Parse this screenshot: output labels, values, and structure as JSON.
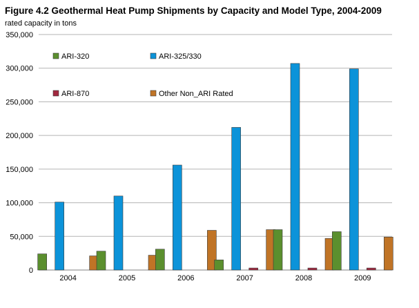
{
  "chart_data": {
    "type": "bar",
    "title": "Figure 4.2 Geothermal Heat Pump Shipments by Capacity and Model Type, 2004-2009",
    "subtitle": "rated capacity in tons",
    "categories": [
      "2004",
      "2005",
      "2006",
      "2007",
      "2008",
      "2009"
    ],
    "ylim": [
      0,
      350000
    ],
    "yticks": [
      "0",
      "50,000",
      "100,000",
      "150,000",
      "200,000",
      "250,000",
      "300,000",
      "350,000"
    ],
    "grid": true,
    "legend_position": "inside-top",
    "series": [
      {
        "name": "ARI-320",
        "color": "#5b8f2e",
        "values": [
          24000,
          28000,
          31000,
          15000,
          60000,
          57000
        ]
      },
      {
        "name": "ARI-325/330",
        "color": "#0c93d9",
        "values": [
          101000,
          110000,
          156000,
          212000,
          307000,
          299000
        ]
      },
      {
        "name": "ARI-870",
        "color": "#a1283f",
        "values": [
          0,
          0,
          0,
          3000,
          3000,
          3000
        ]
      },
      {
        "name": "Other Non_ARI Rated",
        "color": "#c07426",
        "values": [
          21000,
          22000,
          59000,
          60000,
          47000,
          49000
        ]
      }
    ]
  }
}
